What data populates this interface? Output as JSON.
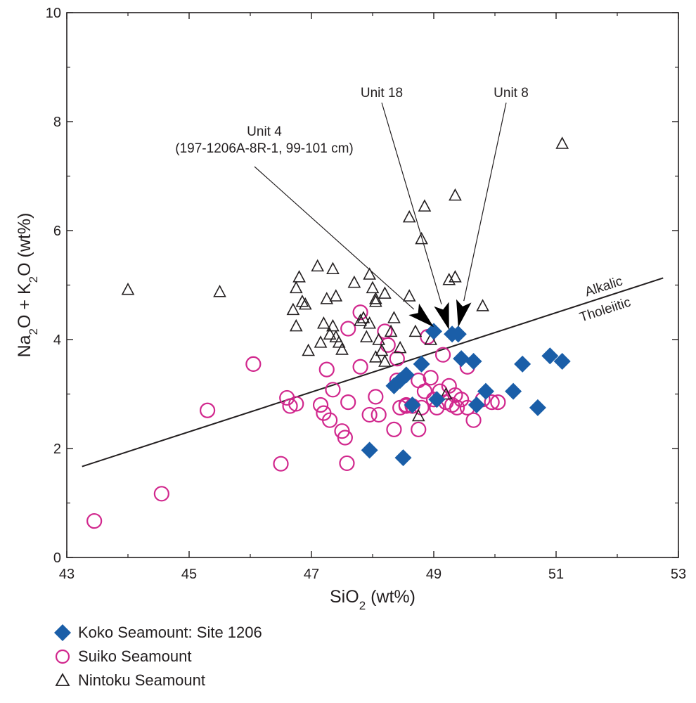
{
  "chart_data": {
    "type": "scatter",
    "xlabel": {
      "pre": "SiO",
      "sub": "2",
      "post": " (wt%)"
    },
    "ylabel": {
      "a": "Na",
      "a_sub": "2",
      "b": "O + K",
      "b_sub": "2",
      "c": "O (wt%)"
    },
    "xlim": [
      43,
      53
    ],
    "ylim": [
      0,
      10
    ],
    "x_ticks": [
      "43",
      "45",
      "47",
      "49",
      "51",
      "53"
    ],
    "y_ticks": [
      "0",
      "2",
      "4",
      "6",
      "8",
      "10"
    ],
    "grid": false,
    "dividing_line": {
      "x": [
        43.25,
        52.75
      ],
      "y": [
        1.67,
        5.13
      ],
      "upper_label": "Alkalic",
      "lower_label": "Tholeiitic"
    },
    "annotations": [
      {
        "lines": [
          "Unit 4",
          "(197-1206A-8R-1, 99-101 cm)"
        ],
        "target": [
          49.0,
          4.1
        ]
      },
      {
        "lines": [
          "Unit 18"
        ],
        "target": [
          49.25,
          4.05
        ]
      },
      {
        "lines": [
          "Unit 8"
        ],
        "target": [
          49.4,
          4.1
        ]
      }
    ],
    "colors": {
      "koko": "#1a5ea8",
      "suiko": "#d1278d",
      "nintoku": "#231f20",
      "line": "#231f20"
    },
    "series": [
      {
        "name": "Koko Seamount: Site 1206",
        "marker": "diamond",
        "points": [
          [
            49.0,
            4.15
          ],
          [
            49.3,
            4.1
          ],
          [
            49.4,
            4.1
          ],
          [
            48.8,
            3.55
          ],
          [
            49.45,
            3.65
          ],
          [
            49.65,
            3.6
          ],
          [
            50.45,
            3.55
          ],
          [
            50.9,
            3.7
          ],
          [
            51.1,
            3.6
          ],
          [
            48.35,
            3.15
          ],
          [
            48.45,
            3.25
          ],
          [
            48.55,
            3.35
          ],
          [
            48.65,
            2.8
          ],
          [
            49.05,
            2.9
          ],
          [
            49.85,
            3.05
          ],
          [
            49.7,
            2.8
          ],
          [
            50.3,
            3.05
          ],
          [
            50.7,
            2.75
          ],
          [
            47.95,
            1.97
          ],
          [
            48.5,
            1.83
          ]
        ]
      },
      {
        "name": "Suiko Seamount",
        "marker": "circle",
        "points": [
          [
            43.45,
            0.67
          ],
          [
            44.55,
            1.17
          ],
          [
            45.3,
            2.7
          ],
          [
            46.05,
            3.55
          ],
          [
            46.5,
            1.72
          ],
          [
            46.6,
            2.93
          ],
          [
            46.65,
            2.78
          ],
          [
            46.75,
            2.82
          ],
          [
            47.15,
            2.8
          ],
          [
            47.2,
            2.65
          ],
          [
            47.3,
            2.52
          ],
          [
            47.25,
            3.45
          ],
          [
            47.35,
            3.08
          ],
          [
            47.5,
            2.32
          ],
          [
            47.55,
            2.2
          ],
          [
            47.58,
            1.73
          ],
          [
            47.6,
            2.85
          ],
          [
            47.6,
            4.2
          ],
          [
            47.8,
            4.5
          ],
          [
            47.8,
            3.5
          ],
          [
            47.95,
            2.62
          ],
          [
            48.05,
            2.95
          ],
          [
            48.1,
            2.62
          ],
          [
            48.2,
            4.15
          ],
          [
            48.25,
            3.9
          ],
          [
            48.35,
            2.35
          ],
          [
            48.4,
            3.25
          ],
          [
            48.4,
            3.65
          ],
          [
            48.45,
            2.75
          ],
          [
            48.55,
            2.8
          ],
          [
            48.55,
            2.78
          ],
          [
            48.65,
            2.78
          ],
          [
            48.75,
            2.35
          ],
          [
            48.75,
            3.25
          ],
          [
            48.8,
            2.75
          ],
          [
            48.85,
            3.05
          ],
          [
            48.9,
            4.05
          ],
          [
            48.95,
            3.3
          ],
          [
            49.0,
            2.9
          ],
          [
            49.05,
            2.75
          ],
          [
            49.1,
            3.05
          ],
          [
            49.15,
            3.72
          ],
          [
            49.2,
            2.85
          ],
          [
            49.25,
            3.15
          ],
          [
            49.3,
            2.8
          ],
          [
            49.35,
            2.98
          ],
          [
            49.38,
            2.75
          ],
          [
            49.45,
            2.9
          ],
          [
            49.55,
            3.5
          ],
          [
            49.55,
            2.75
          ],
          [
            49.65,
            2.52
          ],
          [
            49.8,
            2.9
          ],
          [
            49.95,
            2.85
          ],
          [
            50.05,
            2.85
          ]
        ]
      },
      {
        "name": "Nintoku Seamount",
        "marker": "triangle",
        "points": [
          [
            44.0,
            4.92
          ],
          [
            45.5,
            4.88
          ],
          [
            46.7,
            4.55
          ],
          [
            46.75,
            4.25
          ],
          [
            46.75,
            4.95
          ],
          [
            46.8,
            5.15
          ],
          [
            46.85,
            4.7
          ],
          [
            46.9,
            4.65
          ],
          [
            46.95,
            3.8
          ],
          [
            47.1,
            5.35
          ],
          [
            47.15,
            3.95
          ],
          [
            47.2,
            4.3
          ],
          [
            47.25,
            4.75
          ],
          [
            47.3,
            4.1
          ],
          [
            47.35,
            4.25
          ],
          [
            47.35,
            5.3
          ],
          [
            47.4,
            4.05
          ],
          [
            47.4,
            4.8
          ],
          [
            47.45,
            3.95
          ],
          [
            47.5,
            3.82
          ],
          [
            47.7,
            5.05
          ],
          [
            47.8,
            4.35
          ],
          [
            47.85,
            4.4
          ],
          [
            47.9,
            4.05
          ],
          [
            47.95,
            4.3
          ],
          [
            47.95,
            5.2
          ],
          [
            48.0,
            4.95
          ],
          [
            48.05,
            4.75
          ],
          [
            48.05,
            4.7
          ],
          [
            48.05,
            3.68
          ],
          [
            48.1,
            4.0
          ],
          [
            48.15,
            3.8
          ],
          [
            48.2,
            4.85
          ],
          [
            48.2,
            3.6
          ],
          [
            48.3,
            4.15
          ],
          [
            48.35,
            4.4
          ],
          [
            48.45,
            3.85
          ],
          [
            48.6,
            6.25
          ],
          [
            48.6,
            4.8
          ],
          [
            48.7,
            4.15
          ],
          [
            48.75,
            2.6
          ],
          [
            48.8,
            5.85
          ],
          [
            48.85,
            6.45
          ],
          [
            48.95,
            4.0
          ],
          [
            49.2,
            3.0
          ],
          [
            49.25,
            5.1
          ],
          [
            49.35,
            6.65
          ],
          [
            49.35,
            5.15
          ],
          [
            49.8,
            4.62
          ],
          [
            51.1,
            7.6
          ]
        ]
      }
    ]
  }
}
